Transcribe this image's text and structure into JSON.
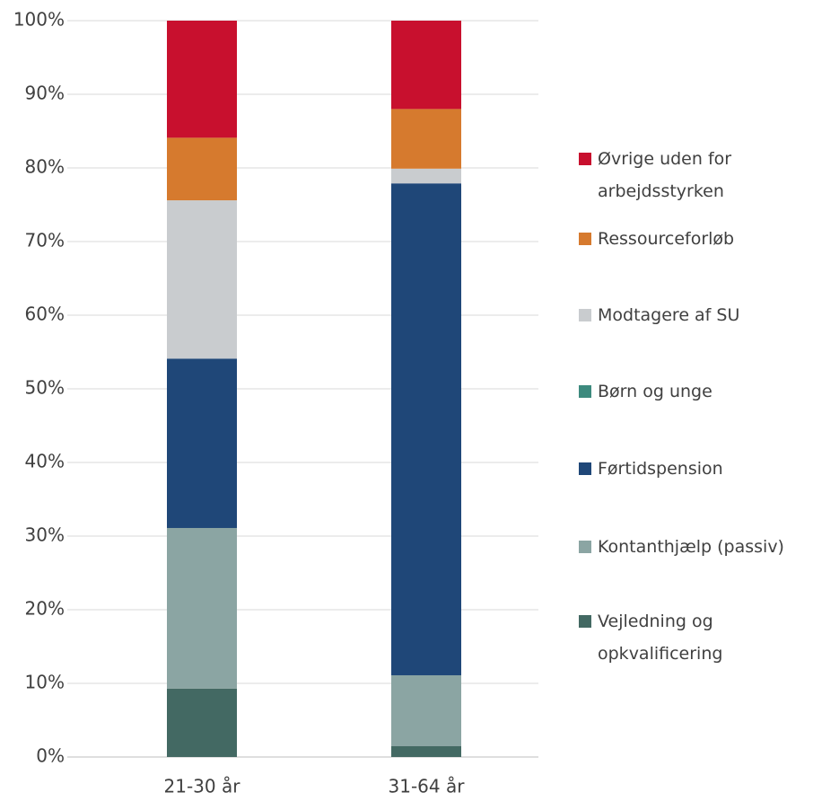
{
  "chart_data": {
    "type": "stacked_bar",
    "categories": [
      "21-30 år",
      "31-64 år"
    ],
    "series": [
      {
        "name": "Vejledning og opkvalificering",
        "color": "#436963",
        "values": [
          9.3,
          1.5
        ]
      },
      {
        "name": "Kontanthjælp (passiv)",
        "color": "#8ba5a3",
        "values": [
          21.8,
          9.6
        ]
      },
      {
        "name": "Førtidspension",
        "color": "#1f4778",
        "values": [
          23.0,
          66.8
        ]
      },
      {
        "name": "Børn og unge",
        "color": "#3d8a7e",
        "values": [
          0,
          0
        ]
      },
      {
        "name": "Modtagere af SU",
        "color": "#c9cccf",
        "values": [
          21.5,
          2.0
        ]
      },
      {
        "name": "Ressourceforløb",
        "color": "#d67a2e",
        "values": [
          8.5,
          8.1
        ]
      },
      {
        "name": "Øvrige uden for arbejdsstyrken",
        "color": "#c8102e",
        "values": [
          15.9,
          12.0
        ]
      }
    ],
    "ylim": [
      0,
      100
    ],
    "yticks": [
      {
        "value": 0,
        "label": "0%"
      },
      {
        "value": 10,
        "label": "10%"
      },
      {
        "value": 20,
        "label": "20%"
      },
      {
        "value": 30,
        "label": "30%"
      },
      {
        "value": 40,
        "label": "40%"
      },
      {
        "value": 50,
        "label": "50%"
      },
      {
        "value": 60,
        "label": "60%"
      },
      {
        "value": 70,
        "label": "70%"
      },
      {
        "value": 80,
        "label": "80%"
      },
      {
        "value": 90,
        "label": "90%"
      },
      {
        "value": 100,
        "label": "100%"
      }
    ],
    "grid": true,
    "legend": "right"
  }
}
